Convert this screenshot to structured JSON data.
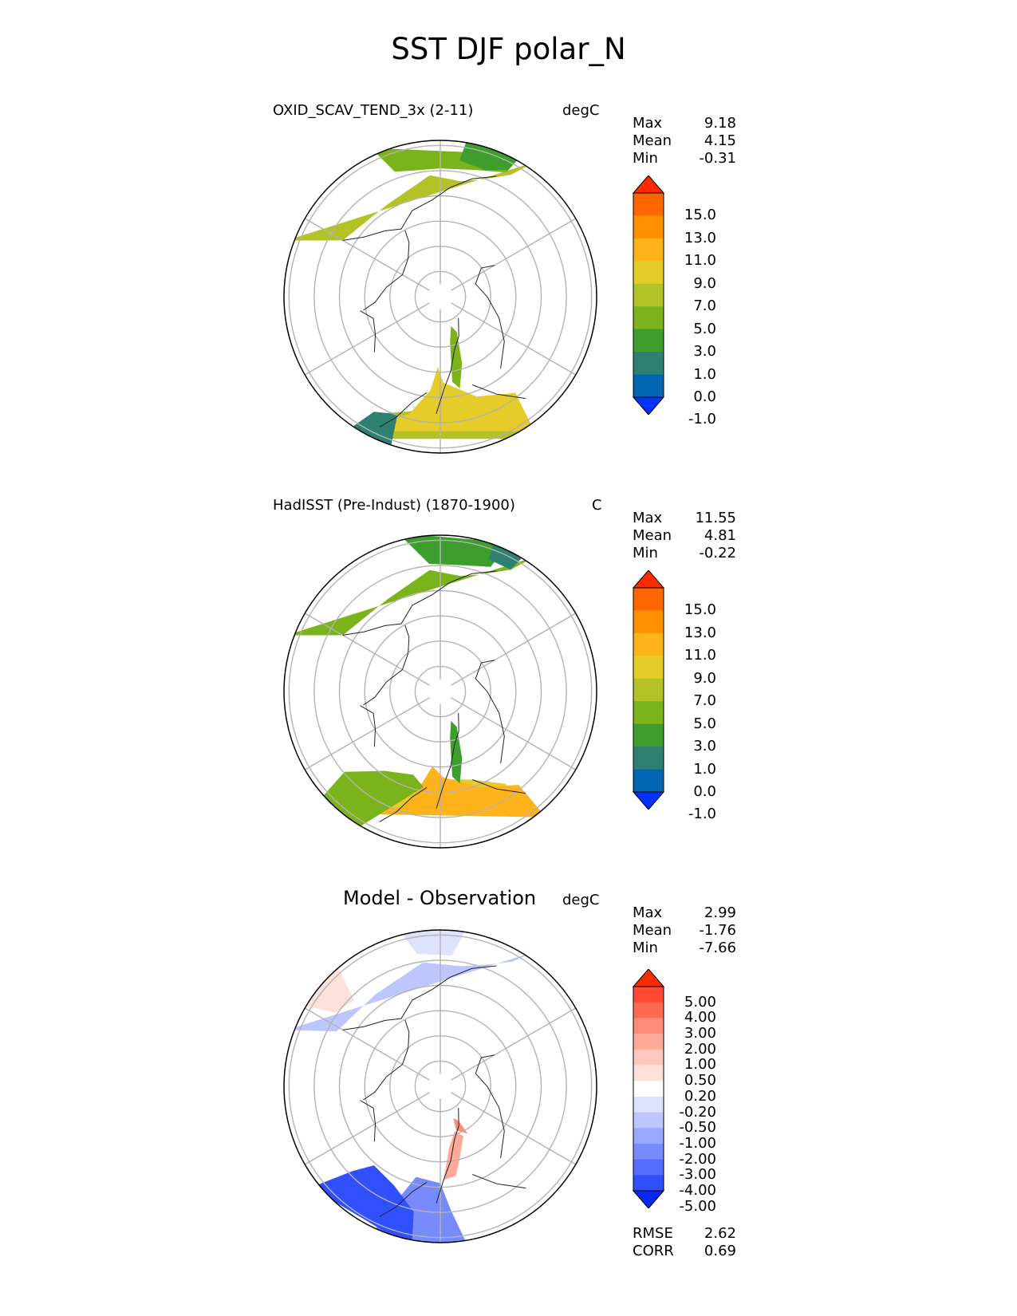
{
  "title": "SST DJF polar_N",
  "panels": [
    {
      "title": "OXID_SCAV_TEND_3x (2-11)",
      "units": "degC",
      "stats": [
        {
          "label": "Max",
          "value": "9.18"
        },
        {
          "label": "Mean",
          "value": "4.15"
        },
        {
          "label": "Min",
          "value": "-0.31"
        }
      ],
      "colorbar": {
        "labels": [
          "15.0",
          "13.0",
          "11.0",
          "9.0",
          "7.0",
          "5.0",
          "3.0",
          "1.0",
          "0.0",
          "-1.0"
        ],
        "colors": [
          "#ff2a00",
          "#ff6600",
          "#ff9100",
          "#ffb31a",
          "#e6cc29",
          "#b3c226",
          "#7ab31a",
          "#3d9e2e",
          "#2e8070",
          "#0066b3",
          "#0033ff"
        ]
      }
    },
    {
      "title": "HadISST (Pre-Indust) (1870-1900)",
      "units": "C",
      "stats": [
        {
          "label": "Max",
          "value": "11.55"
        },
        {
          "label": "Mean",
          "value": "4.81"
        },
        {
          "label": "Min",
          "value": "-0.22"
        }
      ],
      "colorbar": {
        "labels": [
          "15.0",
          "13.0",
          "11.0",
          "9.0",
          "7.0",
          "5.0",
          "3.0",
          "1.0",
          "0.0",
          "-1.0"
        ],
        "colors": [
          "#ff2a00",
          "#ff6600",
          "#ff9100",
          "#ffb31a",
          "#e6cc29",
          "#b3c226",
          "#7ab31a",
          "#3d9e2e",
          "#2e8070",
          "#0066b3",
          "#0033ff"
        ]
      }
    },
    {
      "title": "Model - Observation",
      "units": "degC",
      "stats": [
        {
          "label": "Max",
          "value": "2.99"
        },
        {
          "label": "Mean",
          "value": "-1.76"
        },
        {
          "label": "Min",
          "value": "-7.66"
        }
      ],
      "colorbar": {
        "labels": [
          "5.00",
          "4.00",
          "3.00",
          "2.00",
          "1.00",
          "0.50",
          "0.20",
          "-0.20",
          "-0.50",
          "-1.00",
          "-2.00",
          "-3.00",
          "-4.00",
          "-5.00"
        ],
        "colors": [
          "#ff2a00",
          "#ff4a33",
          "#ff6b52",
          "#ff8c78",
          "#ffaa99",
          "#ffc7bd",
          "#ffe1dc",
          "#ffffff",
          "#dde2ff",
          "#bdc6ff",
          "#9aa8ff",
          "#778bff",
          "#556cff",
          "#3050ff",
          "#0a28f5"
        ]
      },
      "extra_stats": [
        {
          "label": "RMSE",
          "value": "2.62"
        },
        {
          "label": "CORR",
          "value": "0.69"
        }
      ]
    }
  ]
}
